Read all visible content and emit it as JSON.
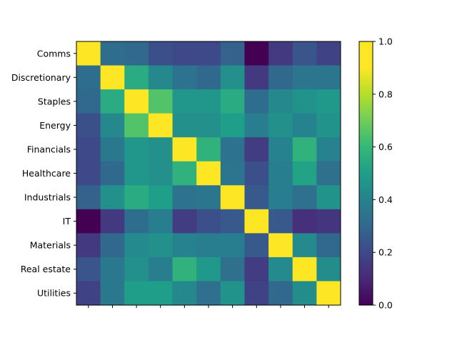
{
  "chart_data": {
    "type": "heatmap",
    "title": "",
    "xlabel": "",
    "ylabel": "",
    "row_labels": [
      "Comms",
      "Discretionary",
      "Staples",
      "Energy",
      "Financials",
      "Healthcare",
      "Industrials",
      "IT",
      "Materials",
      "Real estate",
      "Utilities"
    ],
    "col_labels": [
      "",
      "",
      "",
      "",
      "",
      "",
      "",
      "",
      "",
      "",
      ""
    ],
    "values": [
      [
        1.0,
        0.32,
        0.3,
        0.22,
        0.2,
        0.2,
        0.28,
        0.0,
        0.15,
        0.24,
        0.18
      ],
      [
        0.32,
        1.0,
        0.55,
        0.42,
        0.34,
        0.3,
        0.45,
        0.15,
        0.3,
        0.35,
        0.35
      ],
      [
        0.3,
        0.55,
        1.0,
        0.65,
        0.47,
        0.47,
        0.55,
        0.32,
        0.42,
        0.46,
        0.48
      ],
      [
        0.22,
        0.42,
        0.65,
        1.0,
        0.45,
        0.45,
        0.5,
        0.38,
        0.45,
        0.4,
        0.46
      ],
      [
        0.2,
        0.36,
        0.47,
        0.45,
        1.0,
        0.58,
        0.34,
        0.16,
        0.4,
        0.58,
        0.4
      ],
      [
        0.2,
        0.3,
        0.47,
        0.45,
        0.58,
        1.0,
        0.35,
        0.22,
        0.38,
        0.52,
        0.33
      ],
      [
        0.28,
        0.45,
        0.55,
        0.5,
        0.34,
        0.35,
        1.0,
        0.25,
        0.38,
        0.33,
        0.46
      ],
      [
        0.0,
        0.15,
        0.32,
        0.38,
        0.16,
        0.22,
        0.25,
        1.0,
        0.25,
        0.12,
        0.14
      ],
      [
        0.15,
        0.3,
        0.43,
        0.45,
        0.4,
        0.38,
        0.38,
        0.25,
        1.0,
        0.43,
        0.3
      ],
      [
        0.24,
        0.36,
        0.45,
        0.38,
        0.58,
        0.48,
        0.33,
        0.16,
        0.43,
        1.0,
        0.44
      ],
      [
        0.18,
        0.36,
        0.5,
        0.5,
        0.42,
        0.33,
        0.46,
        0.18,
        0.3,
        0.44,
        1.0
      ]
    ],
    "value_range": [
      0,
      1
    ],
    "colormap": "viridis",
    "colorbar": {
      "ticks": [
        0.0,
        0.2,
        0.4,
        0.6,
        0.8,
        1.0
      ],
      "tick_labels": [
        "0.0",
        "0.2",
        "0.4",
        "0.6",
        "0.8",
        "1.0"
      ],
      "placement": "right"
    },
    "grid": false
  }
}
